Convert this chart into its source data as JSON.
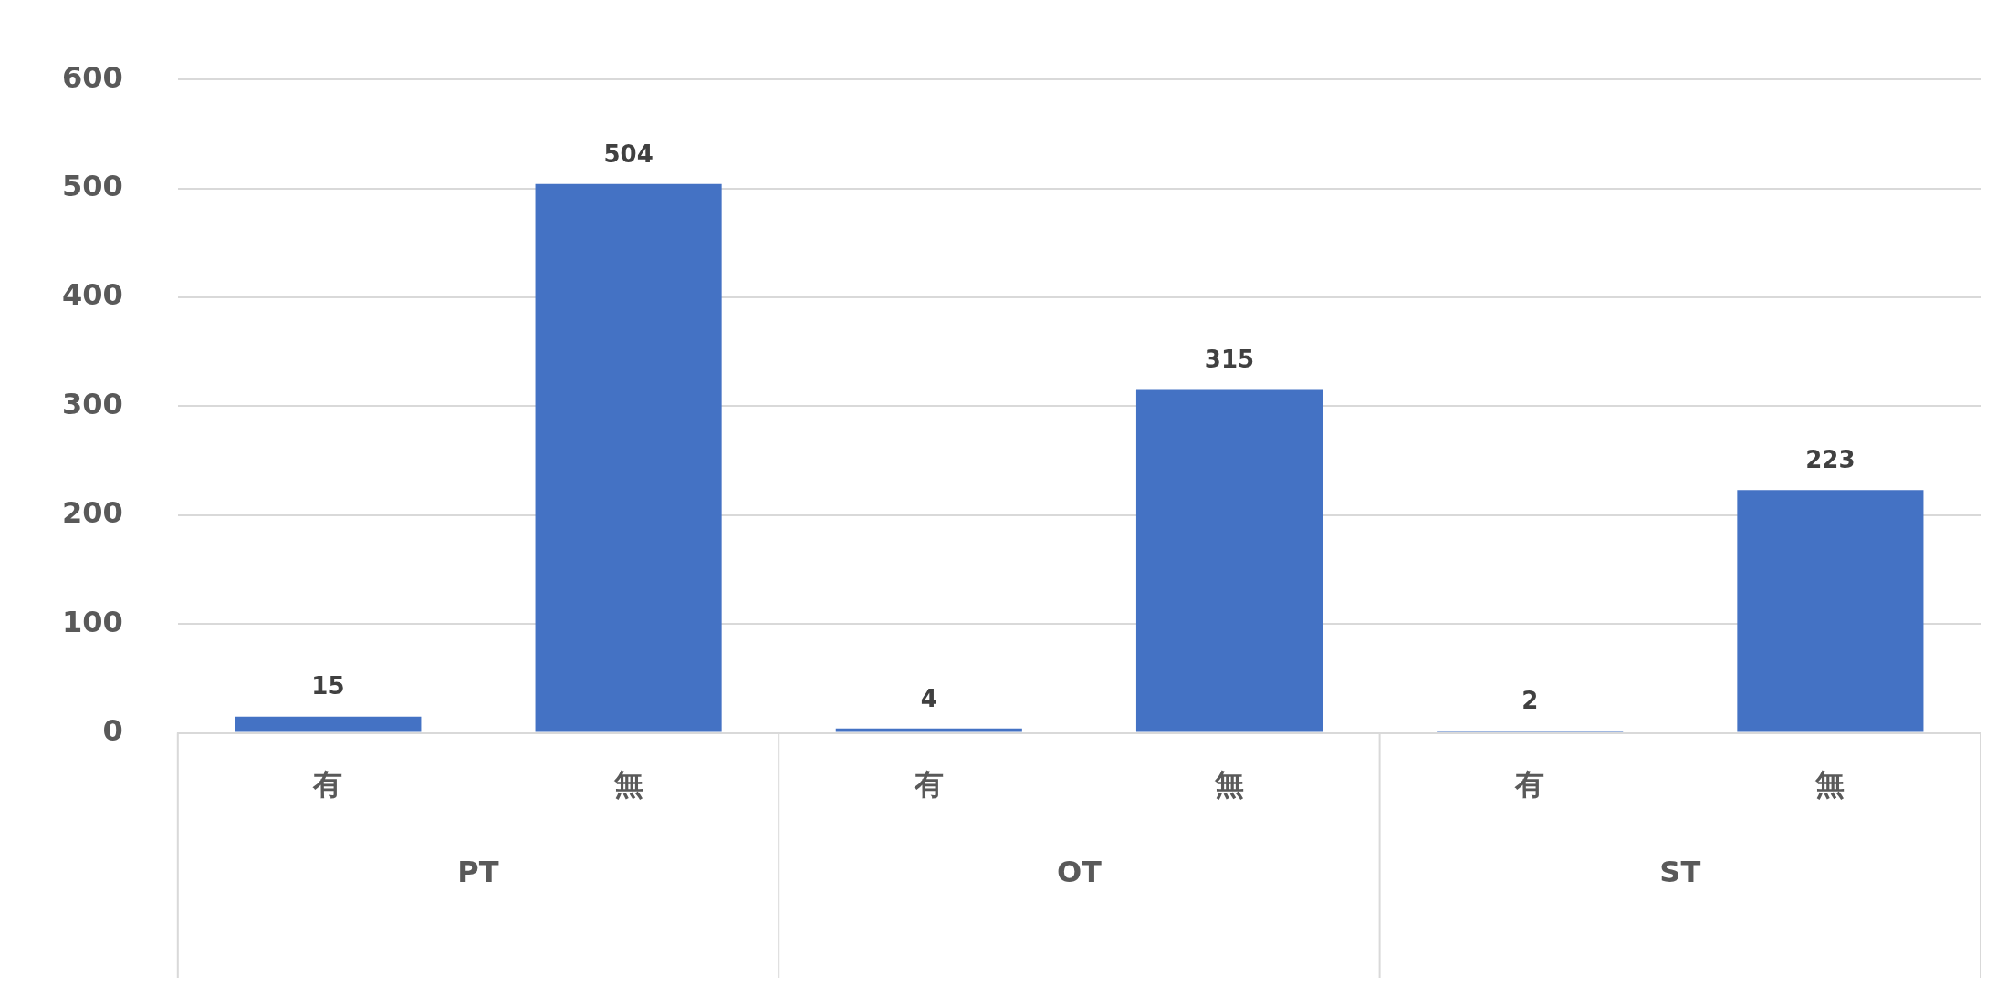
{
  "chart_data": {
    "type": "bar",
    "categories": [
      "有",
      "無",
      "有",
      "無",
      "有",
      "無"
    ],
    "values": [
      15,
      504,
      4,
      315,
      2,
      223
    ],
    "color": "#4472c4",
    "ylim": [
      0,
      600
    ],
    "yticks": [
      0,
      100,
      200,
      300,
      400,
      500,
      600
    ],
    "grid": "y",
    "legend": false,
    "data_labels": true,
    "annotations": [
      "PT",
      "OT",
      "ST"
    ]
  }
}
